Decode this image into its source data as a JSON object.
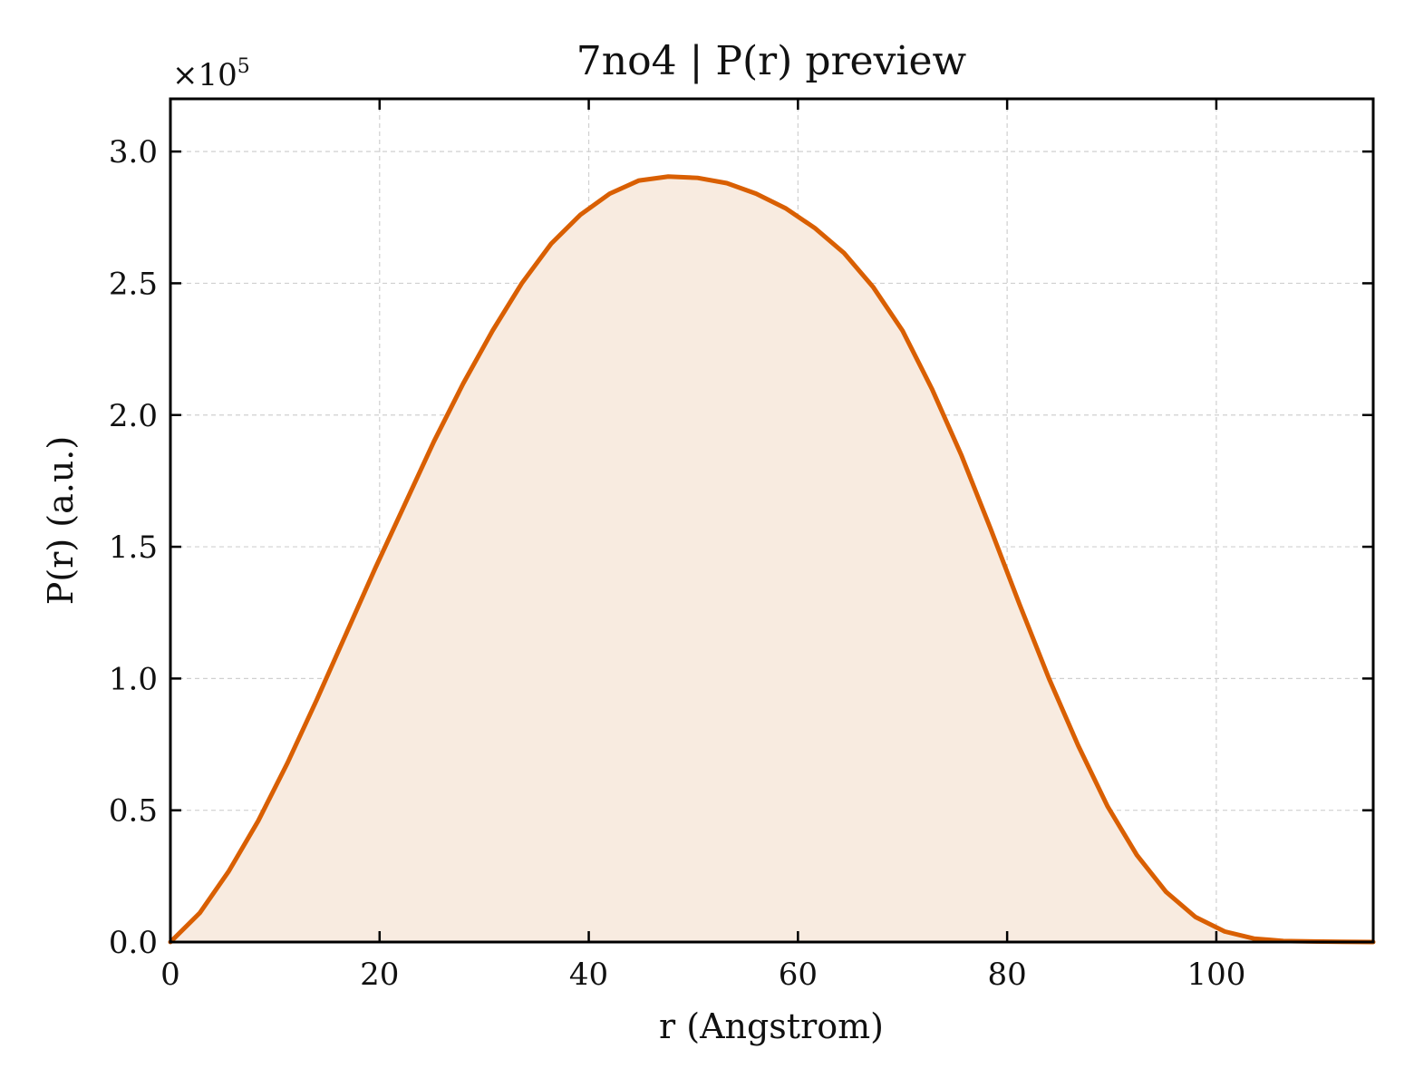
{
  "chart_data": {
    "type": "area",
    "title": "7no4 | P(r) preview",
    "xlabel": "r (Angstrom)",
    "ylabel": "P(r) (a.u.)",
    "y_multiplier": {
      "base": "×10",
      "exponent": "5"
    },
    "xlim": [
      0,
      115
    ],
    "ylim": [
      0,
      3.2
    ],
    "x_ticks": [
      0,
      20,
      40,
      60,
      80,
      100
    ],
    "x_tick_labels": [
      "0",
      "20",
      "40",
      "60",
      "80",
      "100"
    ],
    "y_ticks": [
      0,
      0.5,
      1.0,
      1.5,
      2.0,
      2.5,
      3.0
    ],
    "y_tick_labels": [
      "0.0",
      "0.5",
      "1.0",
      "1.5",
      "2.0",
      "2.5",
      "3.0"
    ],
    "grid": true,
    "series": [
      {
        "color": "#d95f02",
        "fill_color": "#f8ebe0",
        "x": [
          0,
          2.8,
          5.6,
          8.4,
          11.2,
          14.0,
          16.8,
          19.6,
          22.4,
          25.2,
          28.0,
          30.8,
          33.6,
          36.4,
          39.2,
          42.0,
          44.8,
          47.6,
          50.4,
          53.2,
          56.0,
          58.8,
          61.6,
          64.4,
          67.2,
          70.0,
          72.8,
          75.6,
          78.4,
          81.2,
          84.0,
          86.8,
          89.6,
          92.4,
          95.2,
          98.0,
          100.8,
          103.6,
          106.4,
          109.2,
          112.0,
          115.0
        ],
        "y": [
          0.0,
          0.11,
          0.27,
          0.46,
          0.68,
          0.92,
          1.17,
          1.42,
          1.66,
          1.9,
          2.12,
          2.32,
          2.5,
          2.65,
          2.76,
          2.84,
          2.89,
          2.905,
          2.9,
          2.88,
          2.84,
          2.785,
          2.71,
          2.615,
          2.485,
          2.32,
          2.1,
          1.85,
          1.57,
          1.28,
          1.0,
          0.745,
          0.515,
          0.33,
          0.19,
          0.095,
          0.04,
          0.013,
          0.004,
          0.002,
          0.001,
          0.0
        ]
      }
    ]
  }
}
